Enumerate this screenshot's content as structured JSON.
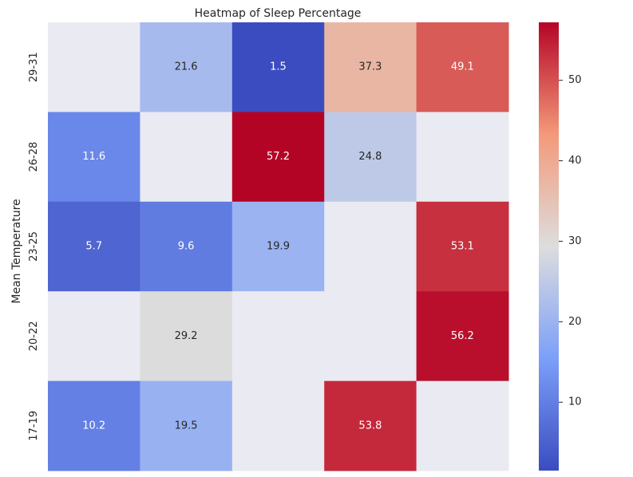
{
  "chart_data": {
    "type": "heatmap",
    "title": "Heatmap of Sleep Percentage",
    "ylabel": "Mean Temperature",
    "xlabel": "",
    "rows": [
      "29-31",
      "26-28",
      "23-25",
      "20-22",
      "17-19"
    ],
    "columns": [
      "",
      "",
      "",
      "",
      ""
    ],
    "values": [
      [
        null,
        21.6,
        1.5,
        37.3,
        49.1
      ],
      [
        11.6,
        null,
        57.2,
        24.8,
        null
      ],
      [
        5.7,
        9.6,
        19.9,
        null,
        53.1
      ],
      [
        null,
        29.2,
        null,
        null,
        56.2
      ],
      [
        10.2,
        19.5,
        null,
        53.8,
        null
      ]
    ],
    "colormap": "coolwarm",
    "vmin": 1.5,
    "vmax": 57.2,
    "colorbar_ticks": [
      10,
      20,
      30,
      40,
      50
    ],
    "missing_color": "#eaeaf2",
    "grid": false
  }
}
